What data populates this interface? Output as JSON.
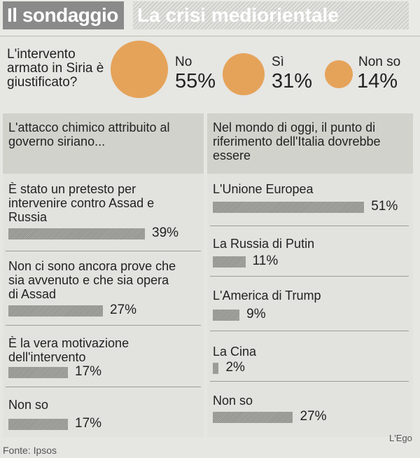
{
  "header": {
    "title": "Il sondaggio",
    "subtitle": "La crisi mediorientale"
  },
  "top_poll": {
    "question": "L'intervento armato in Siria è giustificato?",
    "answers": [
      {
        "label": "No",
        "pct": "55%",
        "value": 55
      },
      {
        "label": "Sì",
        "pct": "31%",
        "value": 31
      },
      {
        "label": "Non so",
        "pct": "14%",
        "value": 14
      }
    ],
    "bubble_color": "#e5a35a"
  },
  "left_panel": {
    "question": "L'attacco chimico attribuito al governo siriano...",
    "items": [
      {
        "label": "È stato un pretesto per intervenire contro Assad e Russia",
        "pct": "39%",
        "value": 39
      },
      {
        "label": "Non ci sono ancora prove che sia avvenuto e che sia opera di Assad",
        "pct": "27%",
        "value": 27
      },
      {
        "label": "È la vera motivazione dell'intervento",
        "pct": "17%",
        "value": 17
      },
      {
        "label": "Non so",
        "pct": "17%",
        "value": 17
      }
    ]
  },
  "right_panel": {
    "question": "Nel mondo di oggi, il punto di riferimento dell'Italia dovrebbe essere",
    "items": [
      {
        "label": "L'Unione Europea",
        "pct": "51%",
        "value": 51
      },
      {
        "label": "La Russia di Putin",
        "pct": "11%",
        "value": 11
      },
      {
        "label": "L'America di Trump",
        "pct": "9%",
        "value": 9
      },
      {
        "label": "La Cina",
        "pct": "2%",
        "value": 2
      },
      {
        "label": "Non so",
        "pct": "27%",
        "value": 27
      }
    ]
  },
  "footer": {
    "source": "Fonte: Ipsos",
    "credit": "L'Ego"
  },
  "chart_data": [
    {
      "type": "bubble",
      "title": "L'intervento armato in Siria è giustificato?",
      "categories": [
        "No",
        "Sì",
        "Non so"
      ],
      "values": [
        55,
        31,
        14
      ]
    },
    {
      "type": "bar",
      "title": "L'attacco chimico attribuito al governo siriano...",
      "categories": [
        "È stato un pretesto per intervenire contro Assad e Russia",
        "Non ci sono ancora prove che sia avvenuto e che sia opera di Assad",
        "È la vera motivazione dell'intervento",
        "Non so"
      ],
      "values": [
        39,
        27,
        17,
        17
      ]
    },
    {
      "type": "bar",
      "title": "Nel mondo di oggi, il punto di riferimento dell'Italia dovrebbe essere",
      "categories": [
        "L'Unione Europea",
        "La Russia di Putin",
        "L'America di Trump",
        "La Cina",
        "Non so"
      ],
      "values": [
        51,
        11,
        9,
        2,
        27
      ]
    }
  ]
}
